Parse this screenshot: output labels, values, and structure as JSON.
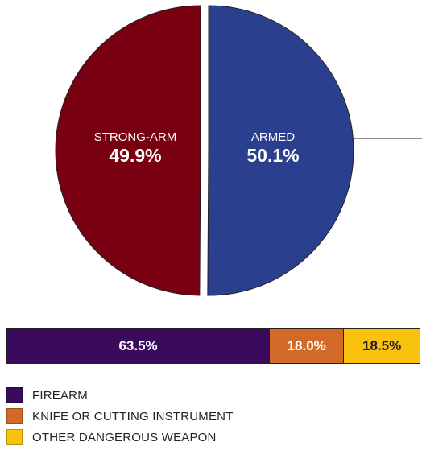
{
  "chart_data": [
    {
      "type": "pie",
      "slices": [
        {
          "label": "STRONG-ARM",
          "value": 49.9,
          "value_label": "49.9%",
          "color": "#780010"
        },
        {
          "label": "ARMED",
          "value": 50.1,
          "value_label": "50.1%",
          "color": "#2b3f8f"
        }
      ]
    },
    {
      "type": "bar",
      "orientation": "horizontal-stacked",
      "categories": [
        "FIREARM",
        "KNIFE OR CUTTING INSTRUMENT",
        "OTHER DANGEROUS WEAPON"
      ],
      "values": [
        63.5,
        18.0,
        18.5
      ],
      "value_labels": [
        "63.5%",
        "18.0%",
        "18.5%"
      ],
      "colors": [
        "#3a0a5c",
        "#d46a27",
        "#f9c20f"
      ],
      "label_colors": [
        "#ffffff",
        "#ffffff",
        "#222222"
      ],
      "legend_position": "bottom-left"
    }
  ]
}
